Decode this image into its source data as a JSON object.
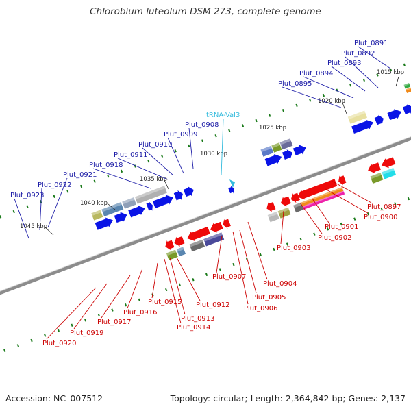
{
  "title": "Chlorobium luteolum DSM 273, complete genome",
  "accession": "Accession: NC_007512",
  "summary": "Topology: circular; Length: 2,364,842 bp; Genes: 2,137",
  "colors": {
    "plus_label": "#1a1aa6",
    "minus_label": "#cc0000",
    "trna_label": "#33bbdd",
    "backbone": "#8c8c8c",
    "tick": "#1a7a1a"
  },
  "scale_ticks": [
    "1015 kbp",
    "1020 kbp",
    "1025 kbp",
    "1030 kbp",
    "1035 kbp",
    "1040 kbp",
    "1045 kbp"
  ],
  "plus_labels": [
    "Plut_0891",
    "Plut_0892",
    "Plut_0893",
    "Plut_0894",
    "Plut_0895",
    "Plut_0908",
    "Plut_0909",
    "Plut_0910",
    "Plut_0911",
    "Plut_0918",
    "Plut_0921",
    "Plut_0922",
    "Plut_0923"
  ],
  "trna_labels": [
    "tRNA-Val3"
  ],
  "minus_labels": [
    "Plut_0897",
    "Plut_0900",
    "Plut_0901",
    "Plut_0902",
    "Plut_0903",
    "Plut_0904",
    "Plut_0905",
    "Plut_0906",
    "Plut_0907",
    "Plut_0912",
    "Plut_0913",
    "Plut_0914",
    "Plut_0915",
    "Plut_0916",
    "Plut_0917",
    "Plut_0919",
    "Plut_0920"
  ]
}
